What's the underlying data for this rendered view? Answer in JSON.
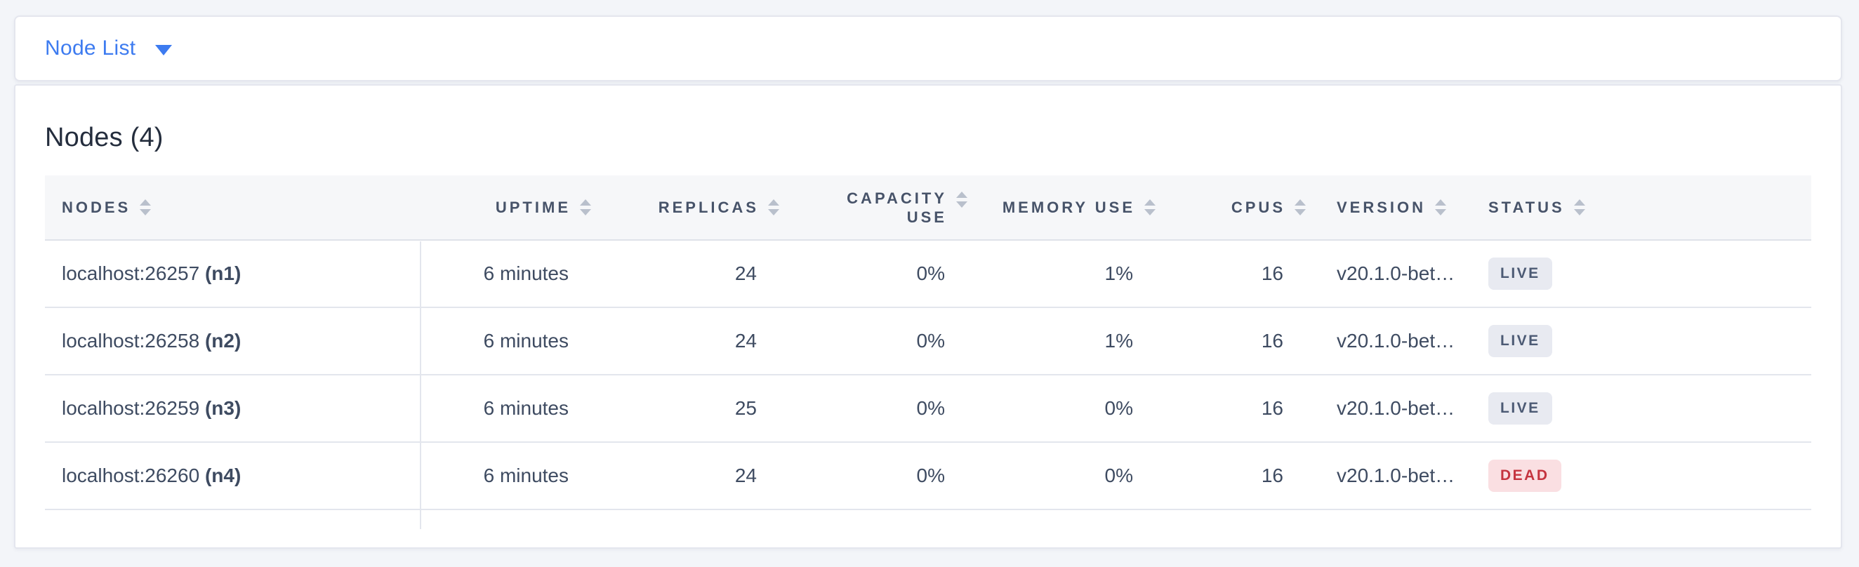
{
  "colors": {
    "page_bg": "#f3f5f9",
    "card_bg": "#ffffff",
    "card_border": "#e4e6ee",
    "accent_blue": "#3d7bf0",
    "header_bg": "#f6f7f9",
    "header_text": "#475369",
    "cell_text": "#3e4b61",
    "row_border": "#e3e6ed",
    "sort_icon": "#b9c0cc",
    "live_bg": "#e8eaf1",
    "live_text": "#4c5a74",
    "dead_bg": "#fadfe2",
    "dead_text": "#c5343f"
  },
  "toolbar": {
    "dropdown_label": "Node List"
  },
  "panel": {
    "title": "Nodes (4)"
  },
  "table": {
    "columns": [
      {
        "id": "nodes",
        "label": "NODES",
        "align": "left"
      },
      {
        "id": "uptime",
        "label": "UPTIME",
        "align": "right"
      },
      {
        "id": "replicas",
        "label": "REPLICAS",
        "align": "right"
      },
      {
        "id": "capacity-use",
        "label": "CAPACITY USE",
        "align": "right",
        "wrap": true
      },
      {
        "id": "memory-use",
        "label": "MEMORY USE",
        "align": "right"
      },
      {
        "id": "cpus",
        "label": "CPUS",
        "align": "right"
      },
      {
        "id": "version",
        "label": "VERSION",
        "align": "left"
      },
      {
        "id": "status",
        "label": "STATUS",
        "align": "left"
      }
    ],
    "rows": [
      {
        "address": "localhost:26257",
        "node_id": "(n1)",
        "uptime": "6 minutes",
        "replicas": "24",
        "capacity_use": "0%",
        "memory_use": "1%",
        "cpus": "16",
        "version": "v20.1.0-bet…",
        "status": "LIVE"
      },
      {
        "address": "localhost:26258",
        "node_id": "(n2)",
        "uptime": "6 minutes",
        "replicas": "24",
        "capacity_use": "0%",
        "memory_use": "1%",
        "cpus": "16",
        "version": "v20.1.0-bet…",
        "status": "LIVE"
      },
      {
        "address": "localhost:26259",
        "node_id": "(n3)",
        "uptime": "6 minutes",
        "replicas": "25",
        "capacity_use": "0%",
        "memory_use": "0%",
        "cpus": "16",
        "version": "v20.1.0-bet…",
        "status": "LIVE"
      },
      {
        "address": "localhost:26260",
        "node_id": "(n4)",
        "uptime": "6 minutes",
        "replicas": "24",
        "capacity_use": "0%",
        "memory_use": "0%",
        "cpus": "16",
        "version": "v20.1.0-bet…",
        "status": "DEAD"
      }
    ]
  }
}
